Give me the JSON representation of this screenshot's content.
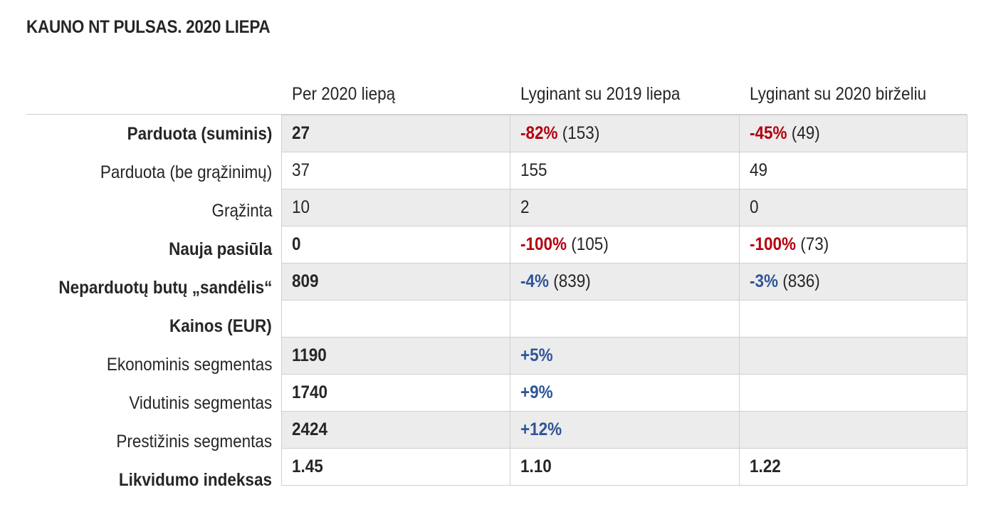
{
  "title": "KAUNO NT PULSAS. 2020 LIEPA",
  "columns": [
    "Per 2020 liepą",
    "Lyginant su 2019 liepa",
    "Lyginant su 2020 birželiu"
  ],
  "colors": {
    "negative": "#b3000f",
    "positive": "#2f5597",
    "shaded_row": "#ececec"
  },
  "rows": [
    {
      "label": "Parduota (suminis)",
      "label_bold": true,
      "shaded": true,
      "cells": [
        {
          "value": "27",
          "bold": true
        },
        {
          "change": "-82%",
          "change_color": "red",
          "paren": " (153)"
        },
        {
          "change": "-45%",
          "change_color": "red",
          "paren": " (49)"
        }
      ]
    },
    {
      "label": "Parduota (be grąžinimų)",
      "label_bold": false,
      "shaded": false,
      "cells": [
        {
          "value": "37"
        },
        {
          "value": "155"
        },
        {
          "value": "49"
        }
      ]
    },
    {
      "label": "Grąžinta",
      "label_bold": false,
      "shaded": true,
      "cells": [
        {
          "value": "10"
        },
        {
          "value": "2"
        },
        {
          "value": "0"
        }
      ]
    },
    {
      "label": "Nauja pasiūla",
      "label_bold": true,
      "shaded": false,
      "cells": [
        {
          "value": "0",
          "bold": true
        },
        {
          "change": "-100%",
          "change_color": "red",
          "paren": " (105)"
        },
        {
          "change": "-100%",
          "change_color": "red",
          "paren": " (73)"
        }
      ]
    },
    {
      "label": "Neparduotų butų „sandėlis“",
      "label_bold": true,
      "shaded": true,
      "cells": [
        {
          "value": "809",
          "bold": true
        },
        {
          "change": "-4%",
          "change_color": "blue",
          "paren": " (839)"
        },
        {
          "change": "-3%",
          "change_color": "blue",
          "paren": " (836)"
        }
      ]
    },
    {
      "label": "Kainos (EUR)",
      "label_bold": true,
      "shaded": false,
      "cells": [
        {
          "value": ""
        },
        {
          "value": ""
        },
        {
          "value": ""
        }
      ]
    },
    {
      "label": "Ekonominis segmentas",
      "label_bold": false,
      "shaded": true,
      "cells": [
        {
          "value": "1190",
          "bold": true
        },
        {
          "change": "+5%",
          "change_color": "blue",
          "paren": ""
        },
        {
          "value": ""
        }
      ]
    },
    {
      "label": "Vidutinis segmentas",
      "label_bold": false,
      "shaded": false,
      "cells": [
        {
          "value": "1740",
          "bold": true
        },
        {
          "change": "+9%",
          "change_color": "blue",
          "paren": ""
        },
        {
          "value": ""
        }
      ]
    },
    {
      "label": "Prestižinis segmentas",
      "label_bold": false,
      "shaded": true,
      "cells": [
        {
          "value": "2424",
          "bold": true
        },
        {
          "change": "+12%",
          "change_color": "blue",
          "paren": ""
        },
        {
          "value": ""
        }
      ]
    },
    {
      "label": "Likvidumo indeksas",
      "label_bold": true,
      "shaded": false,
      "cells": [
        {
          "value": "1.45",
          "bold": true
        },
        {
          "value": "1.10",
          "bold": true
        },
        {
          "value": "1.22",
          "bold": true
        }
      ]
    }
  ]
}
